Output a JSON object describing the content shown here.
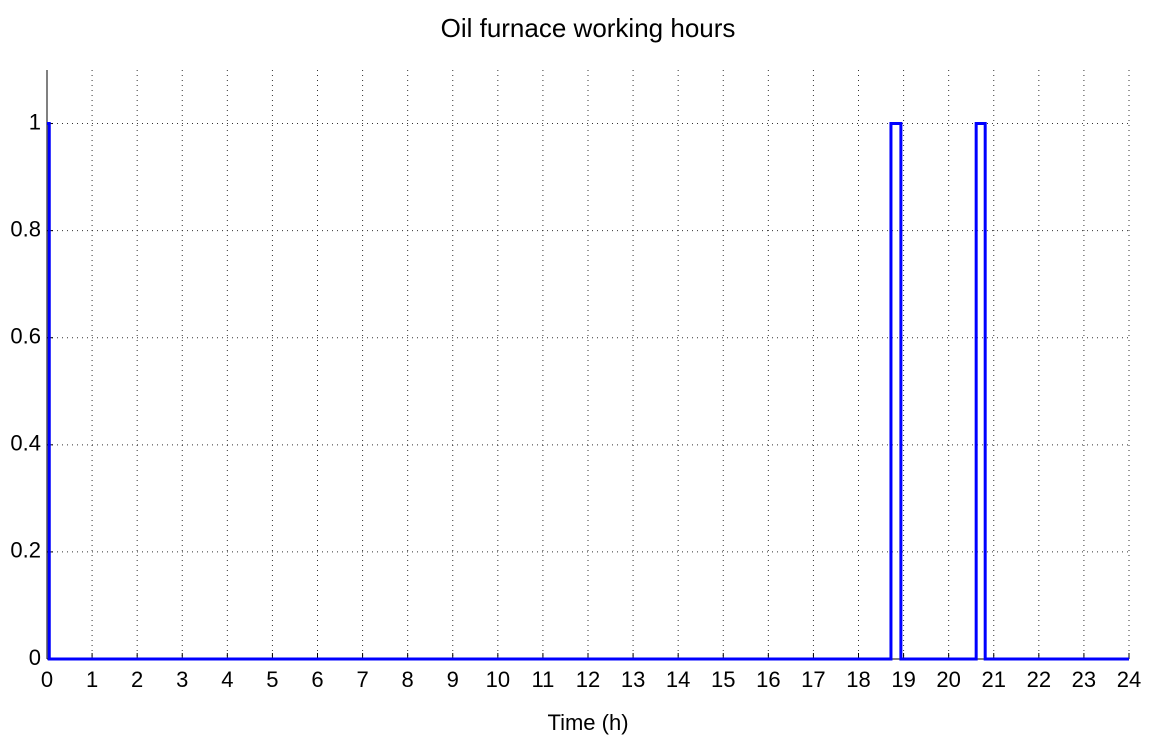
{
  "chart_data": {
    "type": "line",
    "title": "Oil furnace working hours",
    "xlabel": "Time (h)",
    "x": [
      0,
      0.05,
      0.05,
      18.72,
      18.72,
      18.94,
      18.94,
      20.61,
      20.61,
      20.81,
      20.81,
      24
    ],
    "series": [
      {
        "name": "Oil furnace",
        "color": "#0000ff",
        "values": [
          1,
          1,
          0,
          0,
          1,
          1,
          0,
          0,
          1,
          1,
          0,
          0
        ]
      }
    ],
    "xlim": [
      0,
      24
    ],
    "xticks": [
      0,
      1,
      2,
      3,
      4,
      5,
      6,
      7,
      8,
      9,
      10,
      11,
      12,
      13,
      14,
      15,
      16,
      17,
      18,
      19,
      20,
      21,
      22,
      23,
      24
    ],
    "ylim": [
      0,
      1.1
    ],
    "yticks": [
      0,
      0.2,
      0.4,
      0.6,
      0.8,
      1
    ],
    "grid": true
  }
}
